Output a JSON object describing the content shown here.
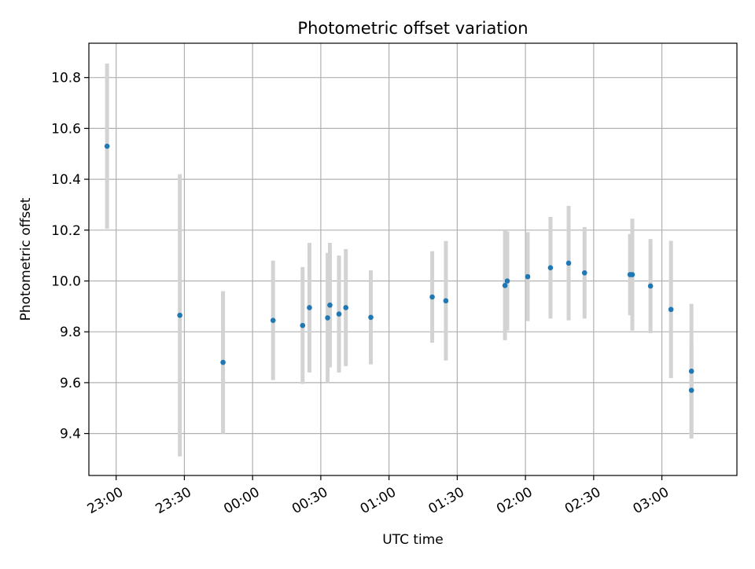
{
  "chart_data": {
    "type": "scatter",
    "title": "Photometric offset variation",
    "xlabel": "UTC time",
    "ylabel": "Photometric offset",
    "x_ticks": [
      "23:00",
      "23:30",
      "00:00",
      "00:30",
      "01:00",
      "01:30",
      "02:00",
      "02:30",
      "03:00"
    ],
    "y_ticks": [
      "9.4",
      "9.6",
      "9.8",
      "10.0",
      "10.2",
      "10.4",
      "10.6",
      "10.8"
    ],
    "xlim": [
      "22:48",
      "03:33"
    ],
    "ylim": [
      9.235,
      10.935
    ],
    "grid": true,
    "series": [
      {
        "marker_color": "#1f77b4",
        "errorbar_color": "#d3d3d3",
        "points": [
          {
            "x": "22:56",
            "y": 10.53,
            "err": 0.325
          },
          {
            "x": "23:28",
            "y": 9.865,
            "err": 0.555
          },
          {
            "x": "23:47",
            "y": 9.68,
            "err": 0.28
          },
          {
            "x": "00:09",
            "y": 9.845,
            "err": 0.235
          },
          {
            "x": "00:22",
            "y": 9.825,
            "err": 0.23
          },
          {
            "x": "00:25",
            "y": 9.895,
            "err": 0.255
          },
          {
            "x": "00:33",
            "y": 9.855,
            "err": 0.255
          },
          {
            "x": "00:34",
            "y": 9.905,
            "err": 0.245
          },
          {
            "x": "00:38",
            "y": 9.87,
            "err": 0.23
          },
          {
            "x": "00:41",
            "y": 9.895,
            "err": 0.23
          },
          {
            "x": "00:52",
            "y": 9.857,
            "err": 0.185
          },
          {
            "x": "01:19",
            "y": 9.937,
            "err": 0.18
          },
          {
            "x": "01:25",
            "y": 9.922,
            "err": 0.235
          },
          {
            "x": "01:51",
            "y": 9.982,
            "err": 0.215
          },
          {
            "x": "01:52",
            "y": 10.0,
            "err": 0.195
          },
          {
            "x": "02:01",
            "y": 10.017,
            "err": 0.175
          },
          {
            "x": "02:11",
            "y": 10.052,
            "err": 0.2
          },
          {
            "x": "02:19",
            "y": 10.07,
            "err": 0.225
          },
          {
            "x": "02:26",
            "y": 10.032,
            "err": 0.18
          },
          {
            "x": "02:46",
            "y": 10.025,
            "err": 0.16
          },
          {
            "x": "02:47",
            "y": 10.025,
            "err": 0.22
          },
          {
            "x": "02:55",
            "y": 9.98,
            "err": 0.185
          },
          {
            "x": "03:04",
            "y": 9.888,
            "err": 0.27
          },
          {
            "x": "03:13",
            "y": 9.645,
            "err": 0.265
          },
          {
            "x": "03:13",
            "y": 9.57,
            "err": 0.185
          }
        ]
      }
    ]
  }
}
